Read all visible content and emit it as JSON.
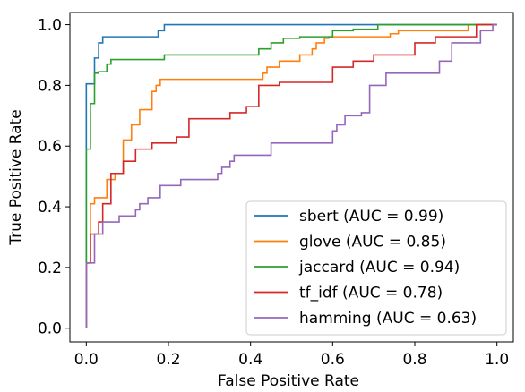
{
  "chart_data": {
    "type": "line",
    "title": "",
    "xlabel": "False Positive Rate",
    "ylabel": "True Positive Rate",
    "xlim": [
      -0.04,
      1.04
    ],
    "ylim": [
      -0.045,
      1.04
    ],
    "xticks": [
      0.0,
      0.2,
      0.4,
      0.6,
      0.8,
      1.0
    ],
    "xtick_labels": [
      "0.0",
      "0.2",
      "0.4",
      "0.6",
      "0.8",
      "1.0"
    ],
    "yticks": [
      0.0,
      0.2,
      0.4,
      0.6,
      0.8,
      1.0
    ],
    "ytick_labels": [
      "0.0",
      "0.2",
      "0.4",
      "0.6",
      "0.8",
      "1.0"
    ],
    "grid": false,
    "legend_position": "lower-right",
    "series": [
      {
        "name": "sbert (AUC = 0.99)",
        "color": "#1f77b4",
        "x": [
          0.0,
          0.0,
          0.02,
          0.02,
          0.03,
          0.03,
          0.04,
          0.04,
          0.175,
          0.175,
          0.19,
          0.19,
          0.65,
          0.65,
          1.0
        ],
        "y": [
          0.0,
          0.805,
          0.805,
          0.89,
          0.89,
          0.94,
          0.94,
          0.96,
          0.96,
          0.98,
          0.98,
          1.0,
          1.0,
          1.0,
          1.0
        ]
      },
      {
        "name": "glove (AUC = 0.85)",
        "color": "#ff7f0e",
        "x": [
          0.0,
          0.0,
          0.01,
          0.01,
          0.02,
          0.02,
          0.05,
          0.05,
          0.07,
          0.07,
          0.09,
          0.09,
          0.11,
          0.11,
          0.13,
          0.13,
          0.16,
          0.16,
          0.17,
          0.17,
          0.18,
          0.18,
          0.43,
          0.43,
          0.44,
          0.44,
          0.47,
          0.47,
          0.52,
          0.52,
          0.55,
          0.55,
          0.56,
          0.56,
          0.58,
          0.58,
          0.59,
          0.59,
          0.74,
          0.74,
          0.76,
          0.76,
          0.88,
          0.88,
          0.93,
          0.93,
          1.0
        ],
        "y": [
          0.0,
          0.215,
          0.215,
          0.41,
          0.41,
          0.43,
          0.43,
          0.49,
          0.49,
          0.51,
          0.51,
          0.62,
          0.62,
          0.67,
          0.67,
          0.72,
          0.72,
          0.78,
          0.78,
          0.8,
          0.8,
          0.82,
          0.82,
          0.84,
          0.84,
          0.86,
          0.86,
          0.88,
          0.88,
          0.9,
          0.9,
          0.92,
          0.92,
          0.94,
          0.94,
          0.955,
          0.955,
          0.96,
          0.96,
          0.97,
          0.97,
          0.98,
          0.98,
          0.98,
          0.98,
          1.0,
          1.0
        ]
      },
      {
        "name": "jaccard (AUC = 0.94)",
        "color": "#2ca02c",
        "x": [
          0.0,
          0.0,
          0.01,
          0.01,
          0.02,
          0.02,
          0.03,
          0.03,
          0.05,
          0.05,
          0.06,
          0.06,
          0.19,
          0.19,
          0.42,
          0.42,
          0.45,
          0.45,
          0.48,
          0.48,
          0.52,
          0.52,
          0.6,
          0.6,
          0.65,
          0.65,
          0.71,
          0.71,
          1.0
        ],
        "y": [
          0.0,
          0.59,
          0.59,
          0.74,
          0.74,
          0.84,
          0.84,
          0.845,
          0.845,
          0.87,
          0.87,
          0.885,
          0.885,
          0.9,
          0.9,
          0.92,
          0.92,
          0.94,
          0.94,
          0.955,
          0.955,
          0.96,
          0.96,
          0.98,
          0.98,
          0.985,
          0.985,
          1.0,
          1.0
        ]
      },
      {
        "name": "tf_idf (AUC = 0.78)",
        "color": "#d62728",
        "x": [
          0.0,
          0.0,
          0.01,
          0.01,
          0.03,
          0.03,
          0.04,
          0.04,
          0.06,
          0.06,
          0.09,
          0.09,
          0.12,
          0.12,
          0.16,
          0.16,
          0.22,
          0.22,
          0.25,
          0.25,
          0.35,
          0.35,
          0.39,
          0.39,
          0.42,
          0.42,
          0.47,
          0.47,
          0.6,
          0.6,
          0.65,
          0.65,
          0.7,
          0.7,
          0.8,
          0.8,
          0.85,
          0.85,
          0.95,
          0.95,
          1.0
        ],
        "y": [
          0.0,
          0.215,
          0.215,
          0.31,
          0.31,
          0.35,
          0.35,
          0.41,
          0.41,
          0.51,
          0.51,
          0.55,
          0.55,
          0.59,
          0.59,
          0.61,
          0.61,
          0.63,
          0.63,
          0.69,
          0.69,
          0.71,
          0.71,
          0.73,
          0.73,
          0.8,
          0.8,
          0.81,
          0.81,
          0.86,
          0.86,
          0.88,
          0.88,
          0.9,
          0.9,
          0.94,
          0.94,
          0.96,
          0.96,
          1.0,
          1.0
        ]
      },
      {
        "name": "hamming (AUC = 0.63)",
        "color": "#9467bd",
        "x": [
          0.0,
          0.0,
          0.02,
          0.02,
          0.04,
          0.04,
          0.08,
          0.08,
          0.12,
          0.12,
          0.13,
          0.13,
          0.15,
          0.15,
          0.18,
          0.18,
          0.23,
          0.23,
          0.32,
          0.32,
          0.33,
          0.33,
          0.35,
          0.35,
          0.36,
          0.36,
          0.45,
          0.45,
          0.6,
          0.6,
          0.61,
          0.61,
          0.63,
          0.63,
          0.67,
          0.67,
          0.69,
          0.69,
          0.73,
          0.73,
          0.86,
          0.86,
          0.89,
          0.89,
          0.96,
          0.96,
          0.99,
          0.99,
          1.0
        ],
        "y": [
          0.0,
          0.215,
          0.215,
          0.31,
          0.31,
          0.35,
          0.35,
          0.37,
          0.37,
          0.39,
          0.39,
          0.41,
          0.41,
          0.43,
          0.43,
          0.47,
          0.47,
          0.49,
          0.49,
          0.51,
          0.51,
          0.53,
          0.53,
          0.55,
          0.55,
          0.57,
          0.57,
          0.61,
          0.61,
          0.65,
          0.65,
          0.67,
          0.67,
          0.7,
          0.7,
          0.71,
          0.71,
          0.8,
          0.8,
          0.84,
          0.84,
          0.88,
          0.88,
          0.94,
          0.94,
          0.98,
          0.98,
          1.0,
          1.0
        ]
      }
    ]
  }
}
